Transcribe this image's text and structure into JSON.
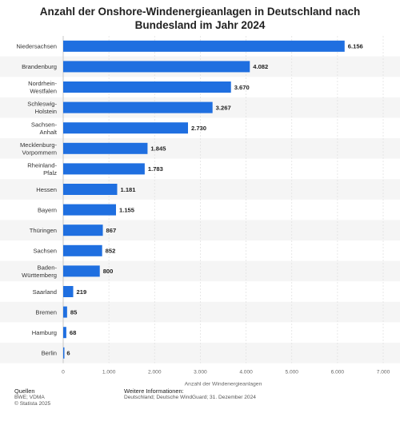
{
  "chart_data": {
    "type": "bar",
    "orientation": "horizontal",
    "title": "Anzahl der Onshore-Windenergieanlagen in Deutschland nach Bundesland im Jahr 2024",
    "xlabel": "Anzahl der Windenergieanlagen",
    "ylabel": "",
    "xlim": [
      0,
      7000
    ],
    "xticks": [
      0,
      1000,
      2000,
      3000,
      4000,
      5000,
      6000,
      7000
    ],
    "xtick_labels": [
      "0",
      "1.000",
      "2.000",
      "3.000",
      "4.000",
      "5.000",
      "6.000",
      "7.000"
    ],
    "grid": "vertical",
    "bar_color": "#1f6fe0",
    "categories": [
      [
        "Niedersachsen"
      ],
      [
        "Brandenburg"
      ],
      [
        "Nordrhein-",
        "Westfalen"
      ],
      [
        "Schleswig-",
        "Holstein"
      ],
      [
        "Sachsen-",
        "Anhalt"
      ],
      [
        "Mecklenburg-",
        "Vorpommern"
      ],
      [
        "Rheinland-",
        "Pfalz"
      ],
      [
        "Hessen"
      ],
      [
        "Bayern"
      ],
      [
        "Thüringen"
      ],
      [
        "Sachsen"
      ],
      [
        "Baden-",
        "Württemberg"
      ],
      [
        "Saarland"
      ],
      [
        "Bremen"
      ],
      [
        "Hamburg"
      ],
      [
        "Berlin"
      ]
    ],
    "values": [
      6156,
      4082,
      3670,
      3267,
      2730,
      1845,
      1783,
      1181,
      1155,
      867,
      852,
      800,
      219,
      85,
      68,
      6
    ],
    "value_labels": [
      "6.156",
      "4.082",
      "3.670",
      "3.267",
      "2.730",
      "1.845",
      "1.783",
      "1.181",
      "1.155",
      "867",
      "852",
      "800",
      "219",
      "85",
      "68",
      "6"
    ]
  },
  "footer": {
    "sources_heading": "Quellen",
    "sources_lines": [
      "BWE; VDMA",
      "© Statista 2025"
    ],
    "info_heading": "Weitere Informationen:",
    "info_text": "Deutschland; Deutsche WindGuard; 31. Dezember 2024"
  }
}
